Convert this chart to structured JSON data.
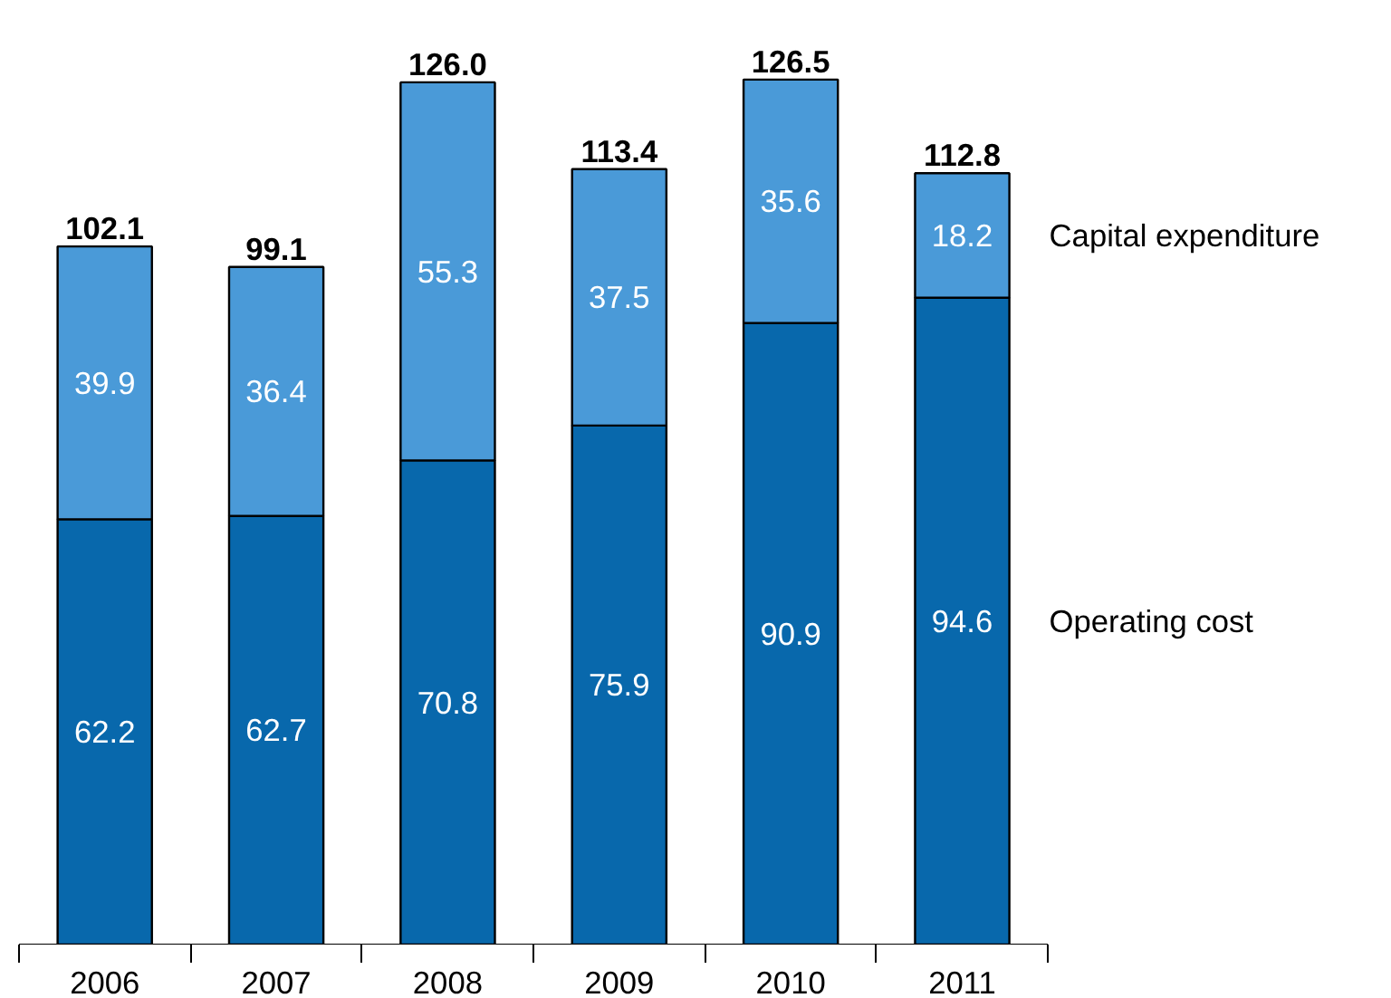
{
  "chart_data": {
    "type": "bar",
    "stacked": true,
    "data_labels": true,
    "categories": [
      "2006",
      "2007",
      "2008",
      "2009",
      "2010",
      "2011"
    ],
    "series": [
      {
        "name": "Operating cost",
        "color": "#0868ac",
        "values": [
          62.2,
          62.7,
          70.8,
          75.9,
          90.9,
          94.6
        ]
      },
      {
        "name": "Capital expenditure",
        "color": "#4a9ad8",
        "values": [
          39.9,
          36.4,
          55.3,
          37.5,
          35.6,
          18.2
        ]
      }
    ],
    "totals": [
      "102.1",
      "99.1",
      "126.0",
      "113.4",
      "126.5",
      "112.8"
    ],
    "grid": false
  }
}
